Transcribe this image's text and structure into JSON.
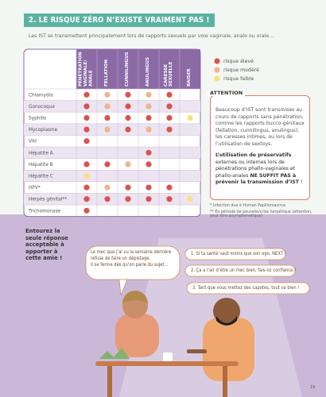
{
  "header": {
    "title": "2. LE RISQUE ZÉRO N’EXISTE VRAIMENT PAS !",
    "subtitle": "Les IST se transmettent principalement lors de rapports sexuels par voie vaginale, anale ou orale..."
  },
  "legend": [
    {
      "label": "risque élevé",
      "color": "#d9534f"
    },
    {
      "label": "risque modéré",
      "color": "#efb48f"
    },
    {
      "label": "risque faible",
      "color": "#f6e27a"
    }
  ],
  "table": {
    "columns": [
      "PÉNÉTRATION VAGINALE/ ANALE",
      "FELLATION",
      "CUNNILINGUS",
      "ANULINGUS",
      "CARESSE SEXUELLE",
      "BAISER"
    ],
    "rows": [
      {
        "label": "Chlamydia",
        "levels": [
          1,
          2,
          1,
          2,
          1,
          null
        ]
      },
      {
        "label": "Gonocoque",
        "levels": [
          1,
          2,
          1,
          2,
          1,
          null
        ]
      },
      {
        "label": "Syphilis",
        "levels": [
          1,
          1,
          1,
          1,
          1,
          3
        ]
      },
      {
        "label": "Mycoplasme",
        "levels": [
          1,
          2,
          1,
          2,
          1,
          null
        ]
      },
      {
        "label": "VIH",
        "levels": [
          1,
          null,
          null,
          null,
          null,
          null
        ]
      },
      {
        "label": "Hépatite A",
        "levels": [
          null,
          null,
          null,
          1,
          null,
          null
        ]
      },
      {
        "label": "Hépatite B",
        "levels": [
          1,
          1,
          2,
          1,
          null,
          null
        ]
      },
      {
        "label": "Hépatite C",
        "levels": [
          3,
          null,
          null,
          null,
          null,
          null
        ]
      },
      {
        "label": "HPV*",
        "levels": [
          1,
          2,
          1,
          1,
          1,
          null
        ]
      },
      {
        "label": "Herpès génital**",
        "levels": [
          1,
          1,
          1,
          1,
          1,
          3
        ]
      },
      {
        "label": "Trichomonase",
        "levels": [
          1,
          null,
          null,
          null,
          null,
          null
        ]
      }
    ]
  },
  "attention": {
    "title": "ATTENTION",
    "paragraph1": "Beaucoup d’IST sont transmises au cours de rapports sans pénétration, comme les rapports bucco-génitaux (fellation, cunnilingus, anulingus), les caresses intimes, ou lors de l’utilisation de sextoys.",
    "paragraph2": [
      {
        "text": "L’utilisation de préservatifs",
        "bold": true
      },
      {
        "text": " externes ou internes lors de pénétrations phallo-vaginales et phallo-anales ",
        "bold": false
      },
      {
        "text": "NE SUFFIT PAS à prévenir la transmission d’IST",
        "bold": true
      },
      {
        "text": " !",
        "bold": false
      }
    ]
  },
  "footnotes": [
    "* Infection due à Human Papillomavirus",
    "** En période de poussée/crise herpétique (attention, peut être asymptomatique)"
  ],
  "task": "Entourez la seule réponse acceptable à apporter à cette amie !",
  "friend_bubble": [
    "Le mec que j’ai vu la semaine dernière refuse de faire un dépistage.",
    "Il se ferme dès qu’on parle du sujet..."
  ],
  "answers": [
    "1. Si ta santé vaut moins que son ego, NEXT !",
    "2. Ça a l’air d’être un mec bien, fais-lui confiance !",
    "3. Tant que vous mettez des capotes, tout va bien !"
  ],
  "page_number": "19"
}
